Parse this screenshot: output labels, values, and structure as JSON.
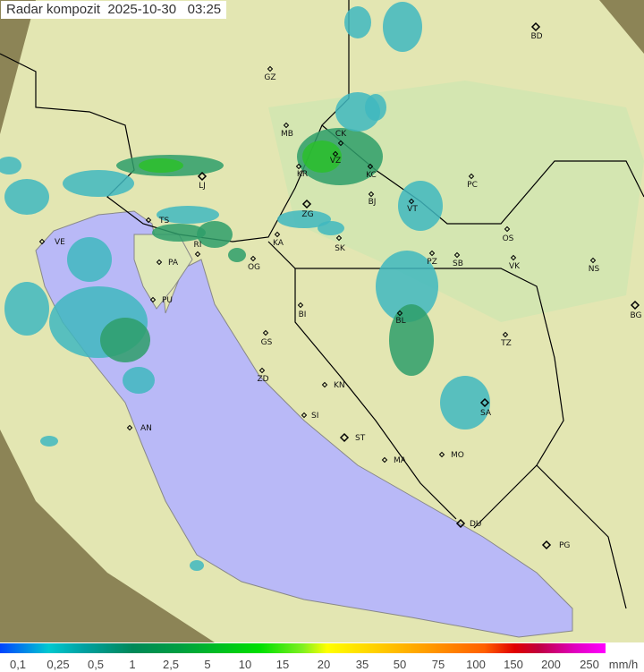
{
  "title": "Radar kompozit  2025-10-30   03:25",
  "legend": {
    "unit": "mm/h",
    "ticks": [
      "0,1",
      "0,25",
      "0,5",
      "1",
      "2,5",
      "5",
      "10",
      "15",
      "20",
      "35",
      "50",
      "75",
      "100",
      "150",
      "200",
      "250"
    ]
  },
  "colors": {
    "sea": "#b9b9f7",
    "land": "#e6e6b4",
    "outside": "#8c8456",
    "rain_light": "#3fb7c0",
    "rain_mid": "#2e9e6a",
    "rain_heavy": "#2bbf2b"
  },
  "cities": [
    "GZ",
    "MB",
    "CK",
    "VZ",
    "KR",
    "KC",
    "BJ",
    "VT",
    "PC",
    "ZG",
    "LJ",
    "TS",
    "VE",
    "RI",
    "PA",
    "PU",
    "KA",
    "OG",
    "SK",
    "PZ",
    "SB",
    "OS",
    "VK",
    "NS",
    "BG",
    "BI",
    "BL",
    "TZ",
    "GS",
    "ZD",
    "KN",
    "SI",
    "ST",
    "MA",
    "MO",
    "SA",
    "DU",
    "PG",
    "AN",
    "BD"
  ]
}
